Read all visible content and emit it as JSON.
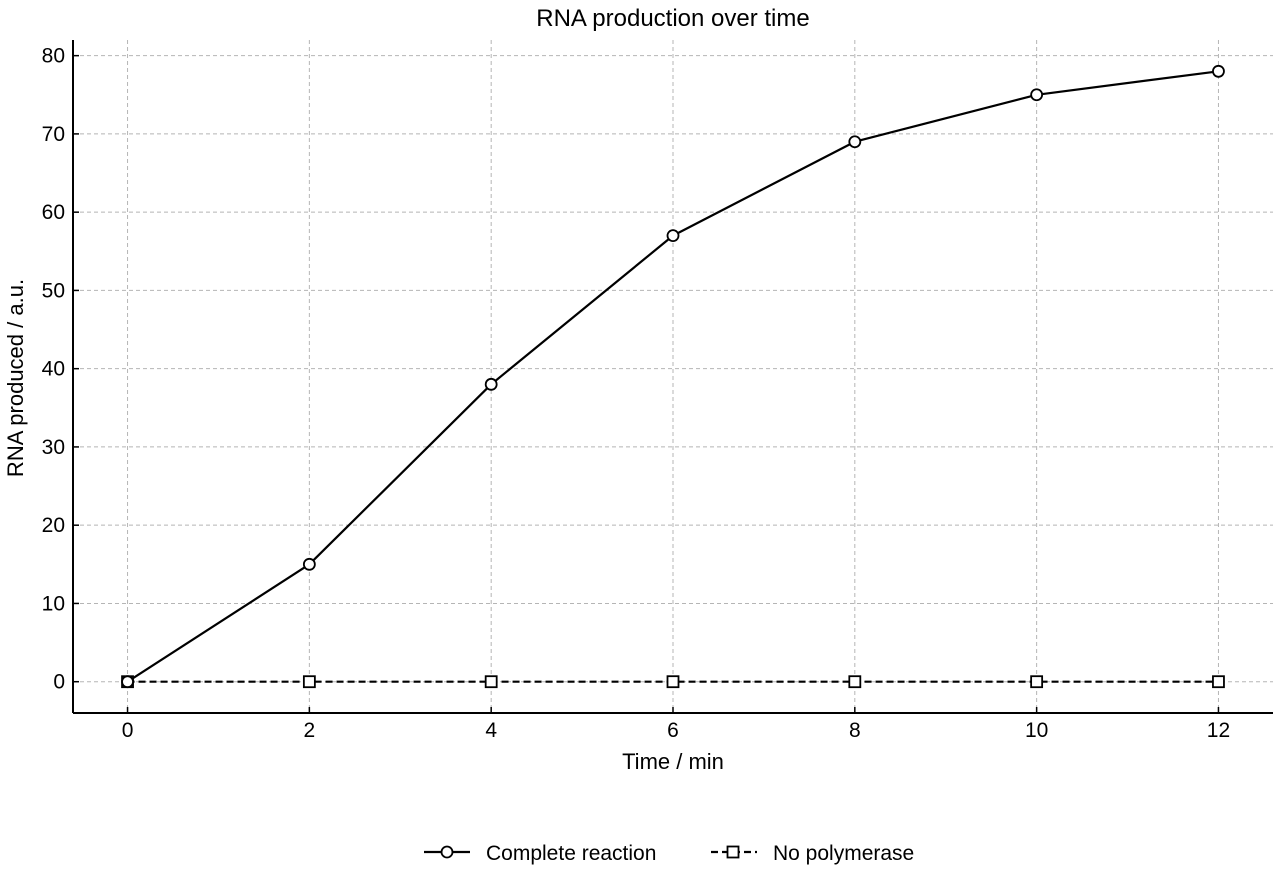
{
  "chart_data": {
    "type": "line",
    "title": "RNA production over time",
    "xlabel": "Time / min",
    "ylabel": "RNA produced / a.u.",
    "x": [
      0,
      2,
      4,
      6,
      8,
      10,
      12
    ],
    "xlim": [
      -0.6,
      12.6
    ],
    "ylim": [
      -4,
      82
    ],
    "xticks": [
      0,
      2,
      4,
      6,
      8,
      10,
      12
    ],
    "yticks": [
      0,
      10,
      20,
      30,
      40,
      50,
      60,
      70,
      80
    ],
    "grid": true,
    "legend_position": "bottom-center",
    "series": [
      {
        "name": "Complete reaction",
        "values": [
          0,
          15,
          38,
          57,
          69,
          75,
          78
        ],
        "marker": "circle",
        "line_style": "solid",
        "color": "#000000"
      },
      {
        "name": "No polymerase",
        "values": [
          0,
          0,
          0,
          0,
          0,
          0,
          0
        ],
        "marker": "square",
        "line_style": "dashed",
        "color": "#000000"
      }
    ]
  }
}
